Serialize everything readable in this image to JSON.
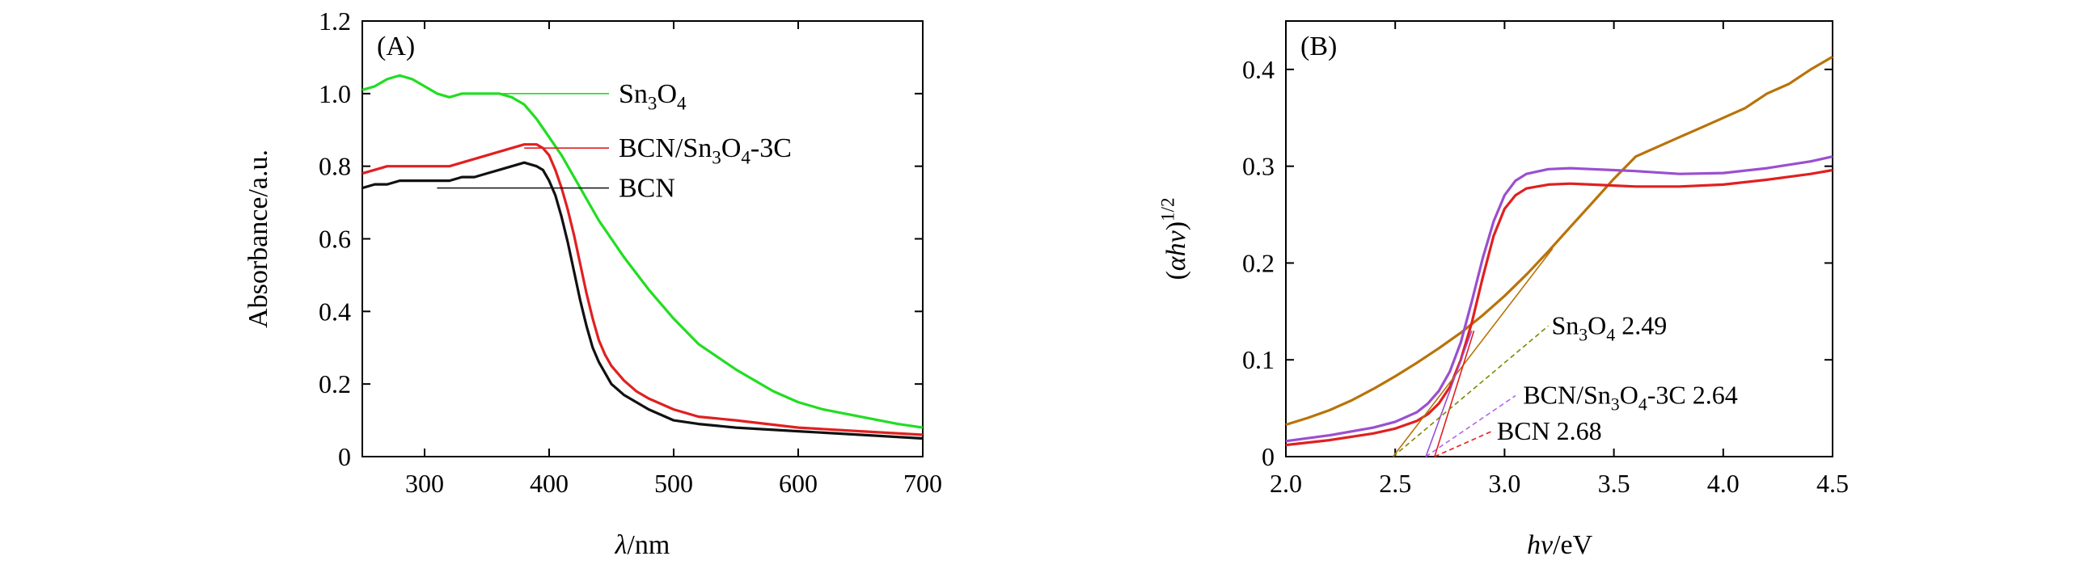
{
  "chart_data": [
    {
      "id": "A",
      "type": "line",
      "panel_label": "(A)",
      "xlabel": "λ/nm",
      "ylabel": "Absorbance/a.u.",
      "xlim": [
        250,
        700
      ],
      "ylim": [
        0,
        1.2
      ],
      "xticks": [
        300,
        400,
        500,
        600,
        700
      ],
      "yticks": [
        0,
        0.2,
        0.4,
        0.6,
        0.8,
        1.0,
        1.2
      ],
      "ytick_labels": [
        "0",
        "0.2",
        "0.4",
        "0.6",
        "0.8",
        "1.0",
        "1.2"
      ],
      "legend_placement": "inline labels with leader lines",
      "series": [
        {
          "name": "Sn3O4",
          "label_main": "Sn",
          "label_parts": [
            [
              "Sn",
              ""
            ],
            [
              "3",
              "sub"
            ],
            [
              "O",
              ""
            ],
            [
              "4",
              "sub"
            ]
          ],
          "color": "#22dd22",
          "x": [
            250,
            260,
            270,
            280,
            290,
            300,
            310,
            320,
            330,
            340,
            350,
            360,
            370,
            380,
            390,
            400,
            410,
            420,
            430,
            440,
            450,
            460,
            480,
            500,
            520,
            550,
            580,
            600,
            620,
            650,
            680,
            700
          ],
          "y": [
            1.01,
            1.02,
            1.04,
            1.05,
            1.04,
            1.02,
            1.0,
            0.99,
            1.0,
            1.0,
            1.0,
            1.0,
            0.99,
            0.97,
            0.93,
            0.88,
            0.83,
            0.77,
            0.71,
            0.65,
            0.6,
            0.55,
            0.46,
            0.38,
            0.31,
            0.24,
            0.18,
            0.15,
            0.13,
            0.11,
            0.09,
            0.08
          ],
          "label_anchor": [
            350,
            1.0
          ]
        },
        {
          "name": "BCN/Sn3O4-3C",
          "label_parts": [
            [
              "BCN/Sn",
              ""
            ],
            [
              "3",
              "sub"
            ],
            [
              "O",
              ""
            ],
            [
              "4",
              "sub"
            ],
            [
              "-3C",
              ""
            ]
          ],
          "color": "#e02020",
          "x": [
            250,
            260,
            270,
            280,
            290,
            300,
            310,
            320,
            330,
            340,
            350,
            360,
            370,
            380,
            390,
            395,
            400,
            405,
            410,
            415,
            420,
            425,
            430,
            435,
            440,
            445,
            450,
            460,
            470,
            480,
            500,
            520,
            550,
            600,
            650,
            700
          ],
          "y": [
            0.78,
            0.79,
            0.8,
            0.8,
            0.8,
            0.8,
            0.8,
            0.8,
            0.81,
            0.82,
            0.83,
            0.84,
            0.85,
            0.86,
            0.86,
            0.85,
            0.83,
            0.79,
            0.74,
            0.68,
            0.61,
            0.53,
            0.45,
            0.38,
            0.32,
            0.28,
            0.25,
            0.21,
            0.18,
            0.16,
            0.13,
            0.11,
            0.1,
            0.08,
            0.07,
            0.06
          ],
          "label_anchor": [
            380,
            0.85
          ]
        },
        {
          "name": "BCN",
          "label_parts": [
            [
              "BCN",
              ""
            ]
          ],
          "color": "#111111",
          "x": [
            250,
            260,
            270,
            280,
            290,
            300,
            310,
            320,
            330,
            340,
            350,
            360,
            370,
            380,
            390,
            395,
            400,
            405,
            410,
            415,
            420,
            425,
            430,
            435,
            440,
            445,
            450,
            460,
            470,
            480,
            500,
            520,
            550,
            600,
            650,
            700
          ],
          "y": [
            0.74,
            0.75,
            0.75,
            0.76,
            0.76,
            0.76,
            0.76,
            0.76,
            0.77,
            0.77,
            0.78,
            0.79,
            0.8,
            0.81,
            0.8,
            0.79,
            0.76,
            0.72,
            0.66,
            0.59,
            0.51,
            0.43,
            0.36,
            0.3,
            0.26,
            0.23,
            0.2,
            0.17,
            0.15,
            0.13,
            0.1,
            0.09,
            0.08,
            0.07,
            0.06,
            0.05
          ],
          "label_anchor": [
            310,
            0.74
          ]
        }
      ],
      "annotations": []
    },
    {
      "id": "B",
      "type": "line",
      "panel_label": "(B)",
      "xlabel_parts": [
        [
          "hv",
          "italic"
        ],
        [
          "/eV",
          ""
        ]
      ],
      "ylabel_parts": [
        [
          "(",
          ""
        ],
        [
          "αhv",
          "italic"
        ],
        [
          ")",
          ""
        ],
        [
          "1/2",
          "sup"
        ]
      ],
      "xlim": [
        2.0,
        4.5
      ],
      "ylim": [
        0,
        0.45
      ],
      "xticks": [
        2.0,
        2.5,
        3.0,
        3.5,
        4.0,
        4.5
      ],
      "xtick_labels": [
        "2.0",
        "2.5",
        "3.0",
        "3.5",
        "4.0",
        "4.5"
      ],
      "yticks": [
        0,
        0.1,
        0.2,
        0.3,
        0.4
      ],
      "ytick_labels": [
        "0",
        "0.1",
        "0.2",
        "0.3",
        "0.4"
      ],
      "series": [
        {
          "name": "Sn3O4",
          "color": "#b8730a",
          "x": [
            2.0,
            2.1,
            2.2,
            2.3,
            2.4,
            2.5,
            2.6,
            2.7,
            2.8,
            2.9,
            3.0,
            3.1,
            3.2,
            3.3,
            3.4,
            3.5,
            3.6,
            3.7,
            3.8,
            3.9,
            4.0,
            4.1,
            4.2,
            4.3,
            4.4,
            4.5
          ],
          "y": [
            0.033,
            0.04,
            0.048,
            0.058,
            0.07,
            0.083,
            0.097,
            0.112,
            0.128,
            0.146,
            0.166,
            0.188,
            0.212,
            0.237,
            0.262,
            0.287,
            0.31,
            0.32,
            0.33,
            0.34,
            0.35,
            0.36,
            0.375,
            0.385,
            0.4,
            0.413
          ]
        },
        {
          "name": "BCN/Sn3O4-3C",
          "color": "#9a4fd0",
          "x": [
            2.0,
            2.2,
            2.4,
            2.5,
            2.6,
            2.65,
            2.7,
            2.75,
            2.8,
            2.85,
            2.9,
            2.95,
            3.0,
            3.05,
            3.1,
            3.2,
            3.3,
            3.4,
            3.5,
            3.6,
            3.8,
            4.0,
            4.2,
            4.4,
            4.5
          ],
          "y": [
            0.016,
            0.022,
            0.03,
            0.036,
            0.046,
            0.055,
            0.068,
            0.088,
            0.118,
            0.16,
            0.205,
            0.243,
            0.27,
            0.285,
            0.292,
            0.297,
            0.298,
            0.297,
            0.296,
            0.295,
            0.292,
            0.293,
            0.298,
            0.305,
            0.31
          ]
        },
        {
          "name": "BCN",
          "color": "#e02020",
          "x": [
            2.0,
            2.2,
            2.4,
            2.5,
            2.6,
            2.65,
            2.7,
            2.75,
            2.8,
            2.85,
            2.9,
            2.95,
            3.0,
            3.05,
            3.1,
            3.2,
            3.3,
            3.4,
            3.5,
            3.6,
            3.8,
            4.0,
            4.2,
            4.4,
            4.5
          ],
          "y": [
            0.012,
            0.017,
            0.024,
            0.029,
            0.037,
            0.044,
            0.055,
            0.072,
            0.1,
            0.138,
            0.185,
            0.228,
            0.256,
            0.27,
            0.277,
            0.281,
            0.282,
            0.281,
            0.28,
            0.279,
            0.279,
            0.281,
            0.286,
            0.292,
            0.296
          ]
        }
      ],
      "tangent_lines": [
        {
          "name": "Sn3O4",
          "color": "#b8730a",
          "x": [
            2.49,
            3.22
          ],
          "y": [
            0,
            0.215
          ]
        },
        {
          "name": "BCN/Sn3O4-3C",
          "color": "#9a4fd0",
          "x": [
            2.64,
            2.85
          ],
          "y": [
            0,
            0.13
          ]
        },
        {
          "name": "BCN",
          "color": "#e02020",
          "x": [
            2.68,
            2.86
          ],
          "y": [
            0,
            0.13
          ]
        }
      ],
      "annotations": [
        {
          "parts": [
            [
              "Sn",
              ""
            ],
            [
              "3",
              "sub"
            ],
            [
              "O",
              ""
            ],
            [
              "4",
              "sub"
            ],
            [
              " 2.49",
              ""
            ]
          ],
          "pos": [
            3.2,
            0.135
          ],
          "from": [
            2.49,
            0.0
          ],
          "to": [
            3.2,
            0.135
          ],
          "color": "#7a8a00"
        },
        {
          "parts": [
            [
              "BCN/Sn",
              ""
            ],
            [
              "3",
              "sub"
            ],
            [
              "O",
              ""
            ],
            [
              "4",
              "sub"
            ],
            [
              "-3C 2.64",
              ""
            ]
          ],
          "pos": [
            3.07,
            0.063
          ],
          "from": [
            2.64,
            0.0
          ],
          "to": [
            3.05,
            0.063
          ],
          "color": "#b060ee"
        },
        {
          "parts": [
            [
              "BCN 2.68",
              ""
            ]
          ],
          "pos": [
            2.95,
            0.026
          ],
          "from": [
            2.68,
            0.0
          ],
          "to": [
            2.94,
            0.026
          ],
          "color": "#e02020"
        }
      ]
    }
  ]
}
